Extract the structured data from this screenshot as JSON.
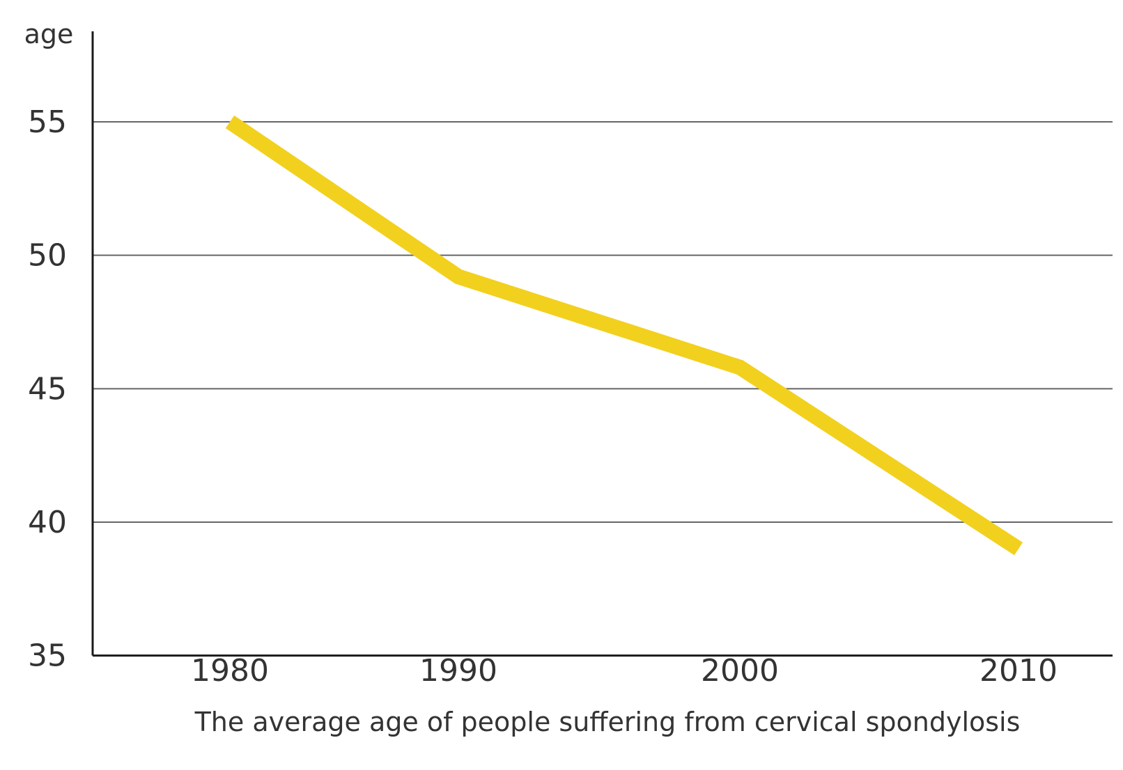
{
  "chart_data": {
    "type": "line",
    "title": "",
    "caption": "The average age of people suffering from cervical spondylosis",
    "xlabel": "",
    "ylabel": "age",
    "categories": [
      "1980",
      "1990",
      "2000",
      "2010"
    ],
    "series": [
      {
        "values": [
          55,
          49.2,
          45.8,
          39
        ],
        "color": "#F2D01E"
      }
    ],
    "yticks": [
      55,
      50,
      45,
      40,
      35
    ],
    "ylim": [
      35,
      57.5
    ],
    "grid": true,
    "colors": {
      "line": "#F2D01E",
      "grid": "#666666",
      "axis": "#1a1a1a",
      "text": "#333333"
    }
  }
}
